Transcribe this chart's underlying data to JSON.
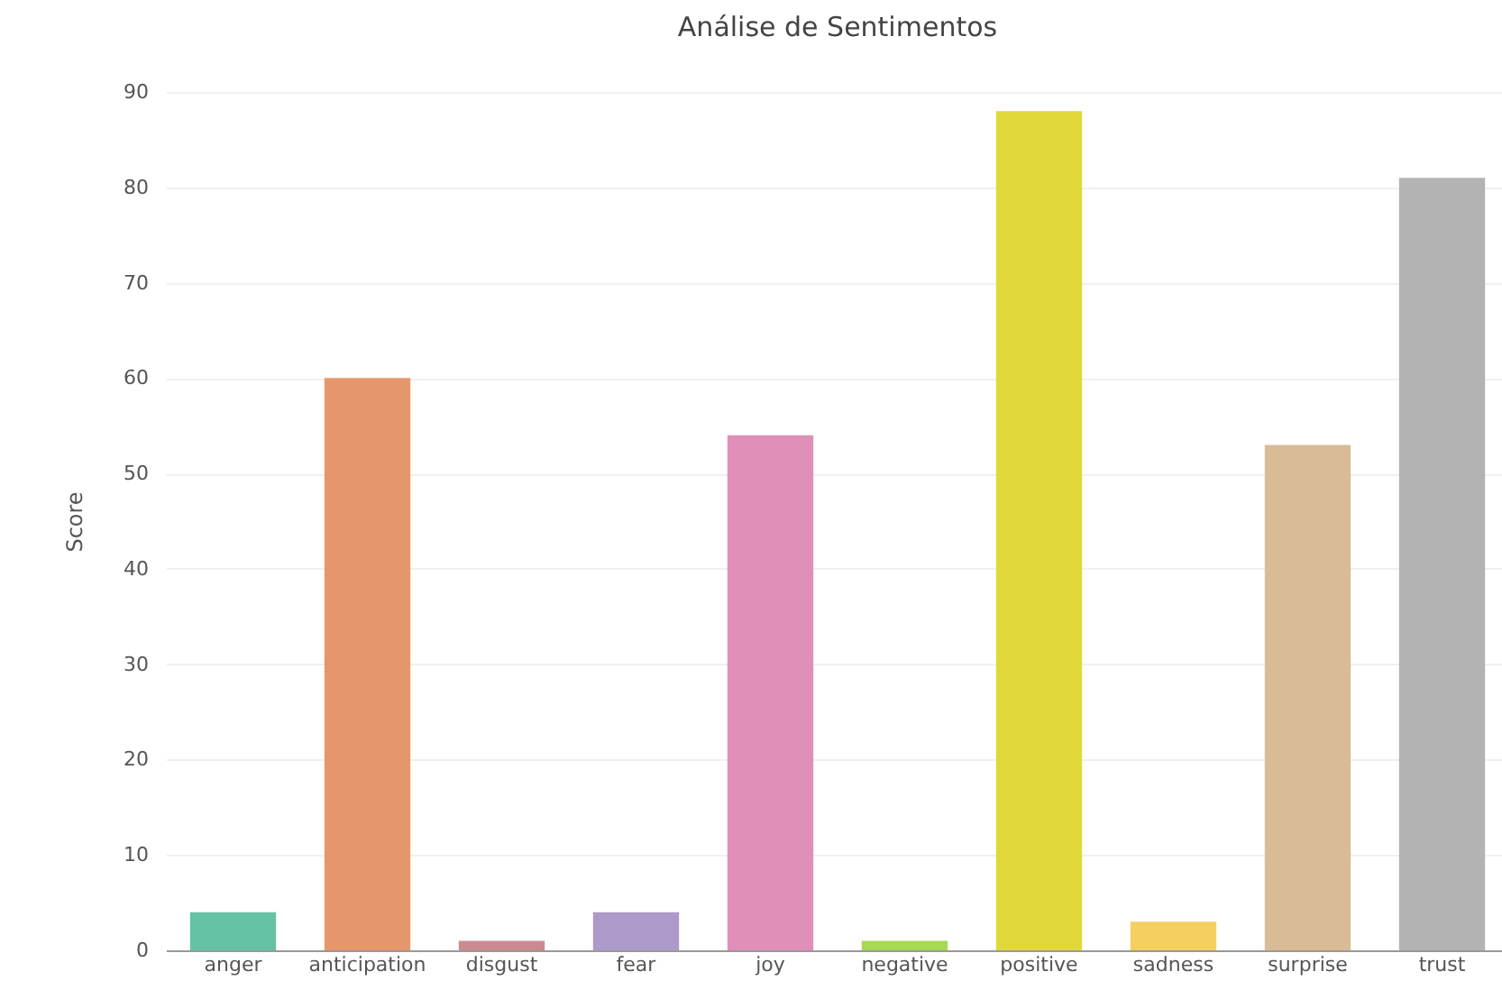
{
  "chart_data": {
    "type": "bar",
    "title": "Análise de Sentimentos",
    "ylabel": "Score",
    "categories": [
      "anger",
      "anticipation",
      "disgust",
      "fear",
      "joy",
      "negative",
      "positive",
      "sadness",
      "surprise",
      "trust"
    ],
    "values": [
      4,
      60,
      1,
      4,
      54,
      1,
      88,
      3,
      53,
      81
    ],
    "colors": [
      "#66c2a5",
      "#e5976b",
      "#c98b8f",
      "#ad9ac8",
      "#e08fb8",
      "#a6d854",
      "#e0d83a",
      "#f5cf5f",
      "#d9bb96",
      "#b3b3b3"
    ],
    "ylim": [
      0,
      90
    ],
    "yticks": [
      0,
      10,
      20,
      30,
      40,
      50,
      60,
      70,
      80,
      90
    ],
    "grid": "y",
    "legend": false
  }
}
